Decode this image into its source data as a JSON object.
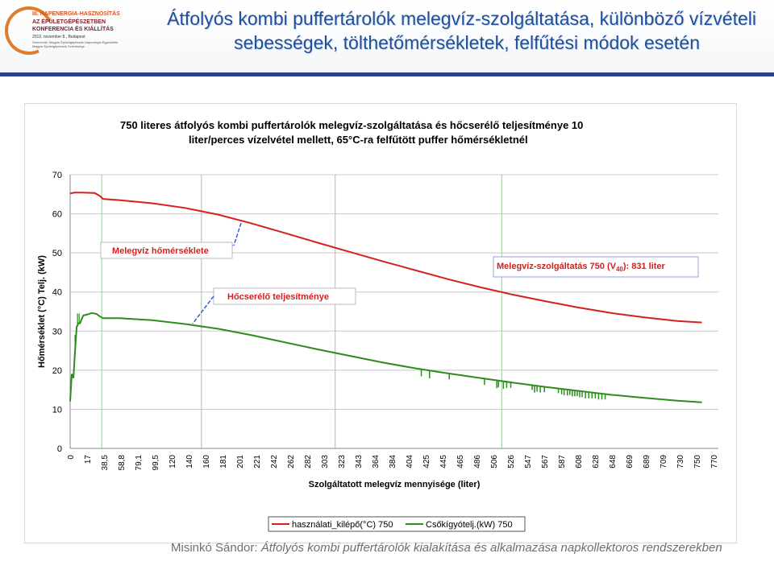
{
  "header": {
    "title_line1": "Átfolyós kombi puffertárolók melegvíz-szolgáltatása, különböző vízvételi",
    "title_line2": "sebességek, tölthetőmérsékletek, felfűtési módok esetén"
  },
  "logo": {
    "line1": "III. NAPENERGIA-HASZNOSÍTÁS",
    "line2": "AZ ÉPÜLETGÉPÉSZETBEN",
    "line3": "KONFERENCIA ÉS KIÁLLÍTÁS",
    "line4": "2012. november 8., Budapest",
    "line5": "Szervezők: Magyar Épületgépészek Napenergia Egyesülete",
    "line6": "Magyar Épületgépészek Szövetsége"
  },
  "footer": {
    "author": "Misinkó Sándor: ",
    "subtitle": "Átfolyós kombi puffertárolók kialakítása és alkalmazása napkollektoros rendszerekben"
  },
  "colors": {
    "red": "#d42020",
    "green": "#2e8b1e",
    "title": "#1e4f9c",
    "annotation_blue": "#3a5fcd"
  },
  "chart_data": {
    "type": "line",
    "title": "750 literes átfolyós kombi puffertárolók melegvíz-szolgáltatása és hőcserélő teljesítménye 10 liter/perces vízelvétel mellett, 65°C-ra felfűtött puffer hőmérsékletnél",
    "title_line1": "750 literes átfolyós kombi puffertárolók melegvíz-szolgáltatása és hőcserélő teljesítménye 10",
    "title_line2": "liter/perces vízelvétel mellett, 65°C-ra felfűtött puffer hőmérsékletnél",
    "xlabel": "Szolgáltatott melegvíz mennyisége (liter)",
    "ylabel": "Hőmérséklet (°C) Telj. (kW)",
    "ylim": [
      0,
      70
    ],
    "xlim": [
      0,
      790
    ],
    "yticks": [
      0,
      10,
      20,
      30,
      40,
      50,
      60,
      70
    ],
    "xtick_labels": [
      "0",
      "17",
      "38,5",
      "58,8",
      "79,1",
      "99,5",
      "120",
      "140",
      "160",
      "181",
      "201",
      "221",
      "242",
      "262",
      "282",
      "303",
      "323",
      "343",
      "364",
      "384",
      "404",
      "425",
      "445",
      "465",
      "486",
      "506",
      "526",
      "547",
      "567",
      "587",
      "608",
      "628",
      "648",
      "669",
      "689",
      "709",
      "730",
      "750",
      "770"
    ],
    "grid": "horizontal",
    "vlines": [
      38.5,
      160,
      323,
      526
    ],
    "legend": "bottom",
    "annotations": {
      "temp": "Melegvíz hőmérséklete",
      "power": "Hőcserélő teljesítménye",
      "service_prefix": "Melegvíz-szolgáltatás 750 (V",
      "service_sub": "40",
      "service_suffix": "): 831 liter"
    },
    "series": [
      {
        "name": "használati_kilépő(°C) 750",
        "color": "#d42020",
        "x": [
          0,
          5,
          15,
          30,
          36,
          40,
          60,
          100,
          140,
          180,
          220,
          260,
          300,
          340,
          380,
          420,
          460,
          500,
          540,
          580,
          620,
          660,
          700,
          740,
          770
        ],
        "y": [
          65.2,
          65.4,
          65.4,
          65.3,
          64.6,
          63.8,
          63.5,
          62.7,
          61.5,
          59.8,
          57.6,
          55.2,
          52.7,
          50.3,
          47.9,
          45.6,
          43.3,
          41.2,
          39.3,
          37.6,
          36.0,
          34.6,
          33.5,
          32.6,
          32.2
        ]
      },
      {
        "name": "Csőkígyótelj.(kW) 750",
        "color": "#2e8b1e",
        "x": [
          0,
          2,
          4,
          6,
          8,
          10,
          12,
          14,
          16,
          20,
          26,
          32,
          36,
          40,
          60,
          100,
          140,
          180,
          220,
          260,
          300,
          340,
          380,
          420,
          460,
          500,
          540,
          580,
          620,
          660,
          700,
          740,
          770
        ],
        "y": [
          12,
          19,
          18,
          25,
          31,
          32,
          32,
          33,
          34,
          34.2,
          34.6,
          34.4,
          33.8,
          33.3,
          33.3,
          32.8,
          31.8,
          30.6,
          29.0,
          27.2,
          25.4,
          23.7,
          22.0,
          20.5,
          19.2,
          18.0,
          16.8,
          15.7,
          14.7,
          13.7,
          12.9,
          12.2,
          11.8
        ]
      }
    ],
    "green_spikes": [
      {
        "x": 428,
        "drop": 1.8
      },
      {
        "x": 438,
        "drop": 2.0
      },
      {
        "x": 462,
        "drop": 1.5
      },
      {
        "x": 505,
        "drop": 1.6
      },
      {
        "x": 520,
        "drop": 2.0
      },
      {
        "x": 522,
        "drop": 1.7
      },
      {
        "x": 528,
        "drop": 1.9
      },
      {
        "x": 532,
        "drop": 1.6
      },
      {
        "x": 537,
        "drop": 1.4
      },
      {
        "x": 563,
        "drop": 1.2
      },
      {
        "x": 566,
        "drop": 1.8
      },
      {
        "x": 569,
        "drop": 1.5
      },
      {
        "x": 573,
        "drop": 1.6
      },
      {
        "x": 578,
        "drop": 1.4
      },
      {
        "x": 595,
        "drop": 1.2
      },
      {
        "x": 599,
        "drop": 1.4
      },
      {
        "x": 602,
        "drop": 1.6
      },
      {
        "x": 606,
        "drop": 1.5
      },
      {
        "x": 609,
        "drop": 1.3
      },
      {
        "x": 612,
        "drop": 1.6
      },
      {
        "x": 615,
        "drop": 1.5
      },
      {
        "x": 618,
        "drop": 1.4
      },
      {
        "x": 621,
        "drop": 1.6
      },
      {
        "x": 624,
        "drop": 1.5
      },
      {
        "x": 628,
        "drop": 1.7
      },
      {
        "x": 632,
        "drop": 1.6
      },
      {
        "x": 636,
        "drop": 1.5
      },
      {
        "x": 640,
        "drop": 1.4
      },
      {
        "x": 644,
        "drop": 1.6
      },
      {
        "x": 648,
        "drop": 1.5
      },
      {
        "x": 652,
        "drop": 1.4
      }
    ],
    "legend_labels": [
      "használati_kilépő(°C) 750",
      "Csőkígyótelj.(kW) 750"
    ]
  }
}
